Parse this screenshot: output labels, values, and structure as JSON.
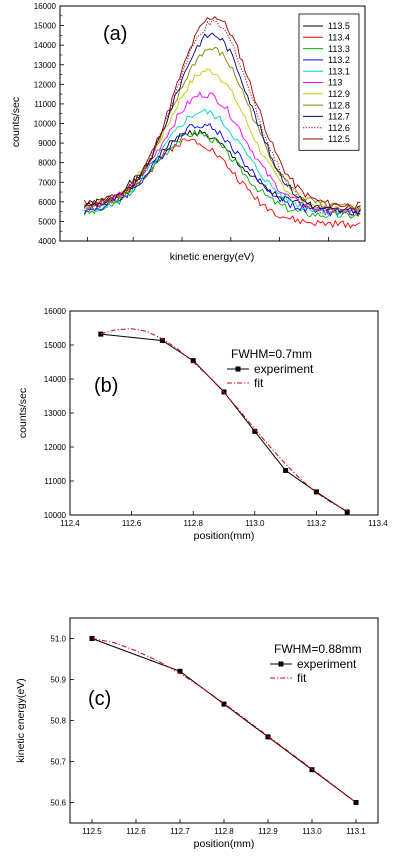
{
  "chart_data": [
    {
      "type": "line",
      "panel_label": "(a)",
      "xlabel": "kinetic energy(eV)",
      "ylabel": "counts/sec",
      "ylim": [
        4000,
        16000
      ],
      "yticks": [
        4000,
        5000,
        6000,
        7000,
        8000,
        9000,
        10000,
        11000,
        12000,
        13000,
        14000,
        15000,
        16000
      ],
      "legend_position": "top-right",
      "series": [
        {
          "name": "113.5",
          "color": "#000000",
          "dash": "solid",
          "amplitude": 3850,
          "center": 0.4,
          "width": 0.155,
          "left_base": 5700,
          "right_base": 5700,
          "noise_seed": 1
        },
        {
          "name": "113.4",
          "color": "#ff0000",
          "dash": "solid",
          "amplitude": 3950,
          "center": 0.4,
          "width": 0.15,
          "left_base": 5500,
          "right_base": 4850,
          "noise_seed": 2
        },
        {
          "name": "113.3",
          "color": "#00b000",
          "dash": "solid",
          "amplitude": 4200,
          "center": 0.405,
          "width": 0.15,
          "left_base": 5300,
          "right_base": 5300,
          "noise_seed": 3
        },
        {
          "name": "113.2",
          "color": "#0000ff",
          "dash": "solid",
          "amplitude": 4500,
          "center": 0.42,
          "width": 0.15,
          "left_base": 5450,
          "right_base": 5450,
          "noise_seed": 4
        },
        {
          "name": "113.1",
          "color": "#00d0d0",
          "dash": "solid",
          "amplitude": 5100,
          "center": 0.43,
          "width": 0.15,
          "left_base": 5500,
          "right_base": 5500,
          "noise_seed": 5
        },
        {
          "name": "113",
          "color": "#ff00ff",
          "dash": "solid",
          "amplitude": 5900,
          "center": 0.44,
          "width": 0.148,
          "left_base": 5700,
          "right_base": 5500,
          "noise_seed": 6
        },
        {
          "name": "112.9",
          "color": "#c8c800",
          "dash": "solid",
          "amplitude": 7000,
          "center": 0.45,
          "width": 0.145,
          "left_base": 5800,
          "right_base": 5600,
          "noise_seed": 7
        },
        {
          "name": "112.8",
          "color": "#808000",
          "dash": "solid",
          "amplitude": 8100,
          "center": 0.46,
          "width": 0.143,
          "left_base": 5700,
          "right_base": 5700,
          "noise_seed": 8
        },
        {
          "name": "112.7",
          "color": "#000080",
          "dash": "solid",
          "amplitude": 8900,
          "center": 0.465,
          "width": 0.14,
          "left_base": 5800,
          "right_base": 5500,
          "noise_seed": 9
        },
        {
          "name": "112.6",
          "color": "#800000",
          "dash": "dotted",
          "amplitude": 9500,
          "center": 0.47,
          "width": 0.14,
          "left_base": 5800,
          "right_base": 5400,
          "noise_seed": 10
        },
        {
          "name": "112.5",
          "color": "#a00000",
          "dash": "solid",
          "amplitude": 9600,
          "center": 0.47,
          "width": 0.14,
          "left_base": 5900,
          "right_base": 5800,
          "noise_seed": 11
        }
      ]
    },
    {
      "type": "line",
      "panel_label": "(b)",
      "annotation": "FWHM=0.7mm",
      "xlabel": "position(mm)",
      "ylabel": "counts/sec",
      "xlim": [
        112.4,
        113.4
      ],
      "ylim": [
        10000,
        16000
      ],
      "xticks": [
        "112.4",
        "112.6",
        "112.8",
        "113.0",
        "113.2",
        "113.4"
      ],
      "yticks": [
        "10000",
        "11000",
        "12000",
        "13000",
        "14000",
        "15000",
        "16000"
      ],
      "series": [
        {
          "name": "experiment",
          "color": "#000000",
          "dash": "solid",
          "marker": "square",
          "x": [
            112.5,
            112.7,
            112.8,
            112.9,
            113.0,
            113.1,
            113.2,
            113.3
          ],
          "y": [
            15320,
            15130,
            14540,
            13620,
            12460,
            11310,
            10680,
            10090
          ]
        },
        {
          "name": "fit",
          "color": "#cc0000",
          "dash": "dashdot",
          "marker": "none",
          "x": [
            112.5,
            112.55,
            112.6,
            112.65,
            112.7,
            112.75,
            112.8,
            112.85,
            112.9,
            112.95,
            113.0,
            113.05,
            113.1,
            113.15,
            113.2,
            113.25,
            113.3
          ],
          "y": [
            15330,
            15450,
            15480,
            15400,
            15180,
            14880,
            14500,
            14080,
            13600,
            13080,
            12530,
            12000,
            11500,
            11040,
            10660,
            10360,
            10120
          ]
        }
      ]
    },
    {
      "type": "line",
      "panel_label": "(c)",
      "annotation": "FWHM=0.88mm",
      "xlabel": "position(mm)",
      "ylabel": "kinetic energy(eV)",
      "xlim": [
        112.45,
        113.15
      ],
      "ylim": [
        50.55,
        51.05
      ],
      "xticks": [
        "112.5",
        "112.6",
        "112.7",
        "112.8",
        "112.9",
        "113.0",
        "113.1"
      ],
      "yticks": [
        "50.6",
        "50.7",
        "50.8",
        "50.9",
        "51.0"
      ],
      "series": [
        {
          "name": "experiment",
          "color": "#000000",
          "dash": "solid",
          "marker": "square",
          "x": [
            112.5,
            112.7,
            112.8,
            112.9,
            113.0,
            113.1
          ],
          "y": [
            51.0,
            50.92,
            50.84,
            50.76,
            50.68,
            50.6
          ]
        },
        {
          "name": "fit",
          "color": "#cc0000",
          "dash": "dashdot",
          "marker": "none",
          "x": [
            112.5,
            112.55,
            112.6,
            112.65,
            112.7,
            112.75,
            112.8,
            112.85,
            112.9,
            112.95,
            113.0,
            113.05,
            113.1
          ],
          "y": [
            51.0,
            50.99,
            50.97,
            50.945,
            50.915,
            50.88,
            50.842,
            50.802,
            50.762,
            50.722,
            50.682,
            50.641,
            50.6
          ]
        }
      ]
    }
  ]
}
